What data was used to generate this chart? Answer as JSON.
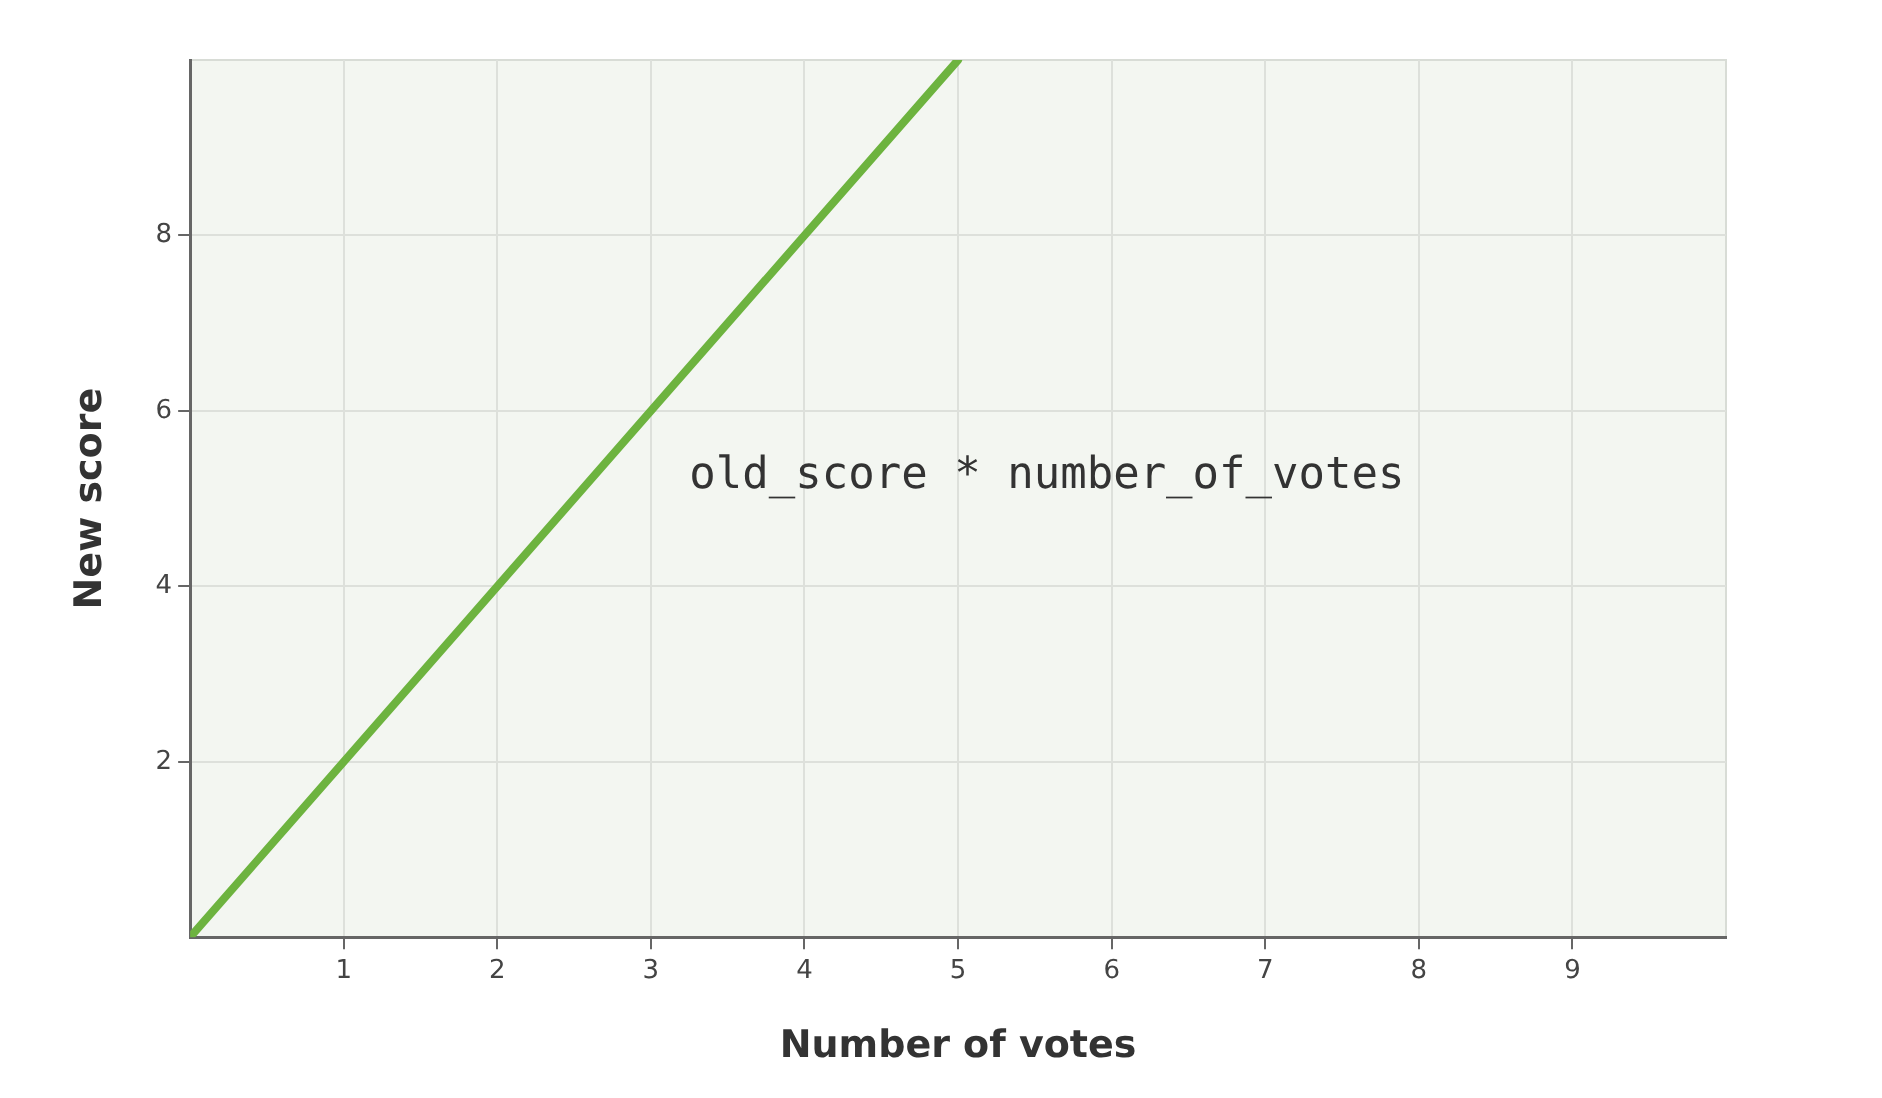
{
  "chart_data": {
    "type": "line",
    "xlabel": "Number of votes",
    "ylabel": "New score",
    "x": [
      0,
      5
    ],
    "series": [
      {
        "color": "#6db33f",
        "values": [
          0,
          10
        ]
      }
    ],
    "xlim": [
      0,
      10
    ],
    "ylim": [
      0,
      10
    ],
    "xticks": [
      1,
      2,
      3,
      4,
      5,
      6,
      7,
      8,
      9
    ],
    "yticks": [
      2,
      4,
      6,
      8
    ],
    "grid": true,
    "marker": "none",
    "line_style": "solid",
    "annotations": [
      "old_score * number_of_votes"
    ]
  }
}
